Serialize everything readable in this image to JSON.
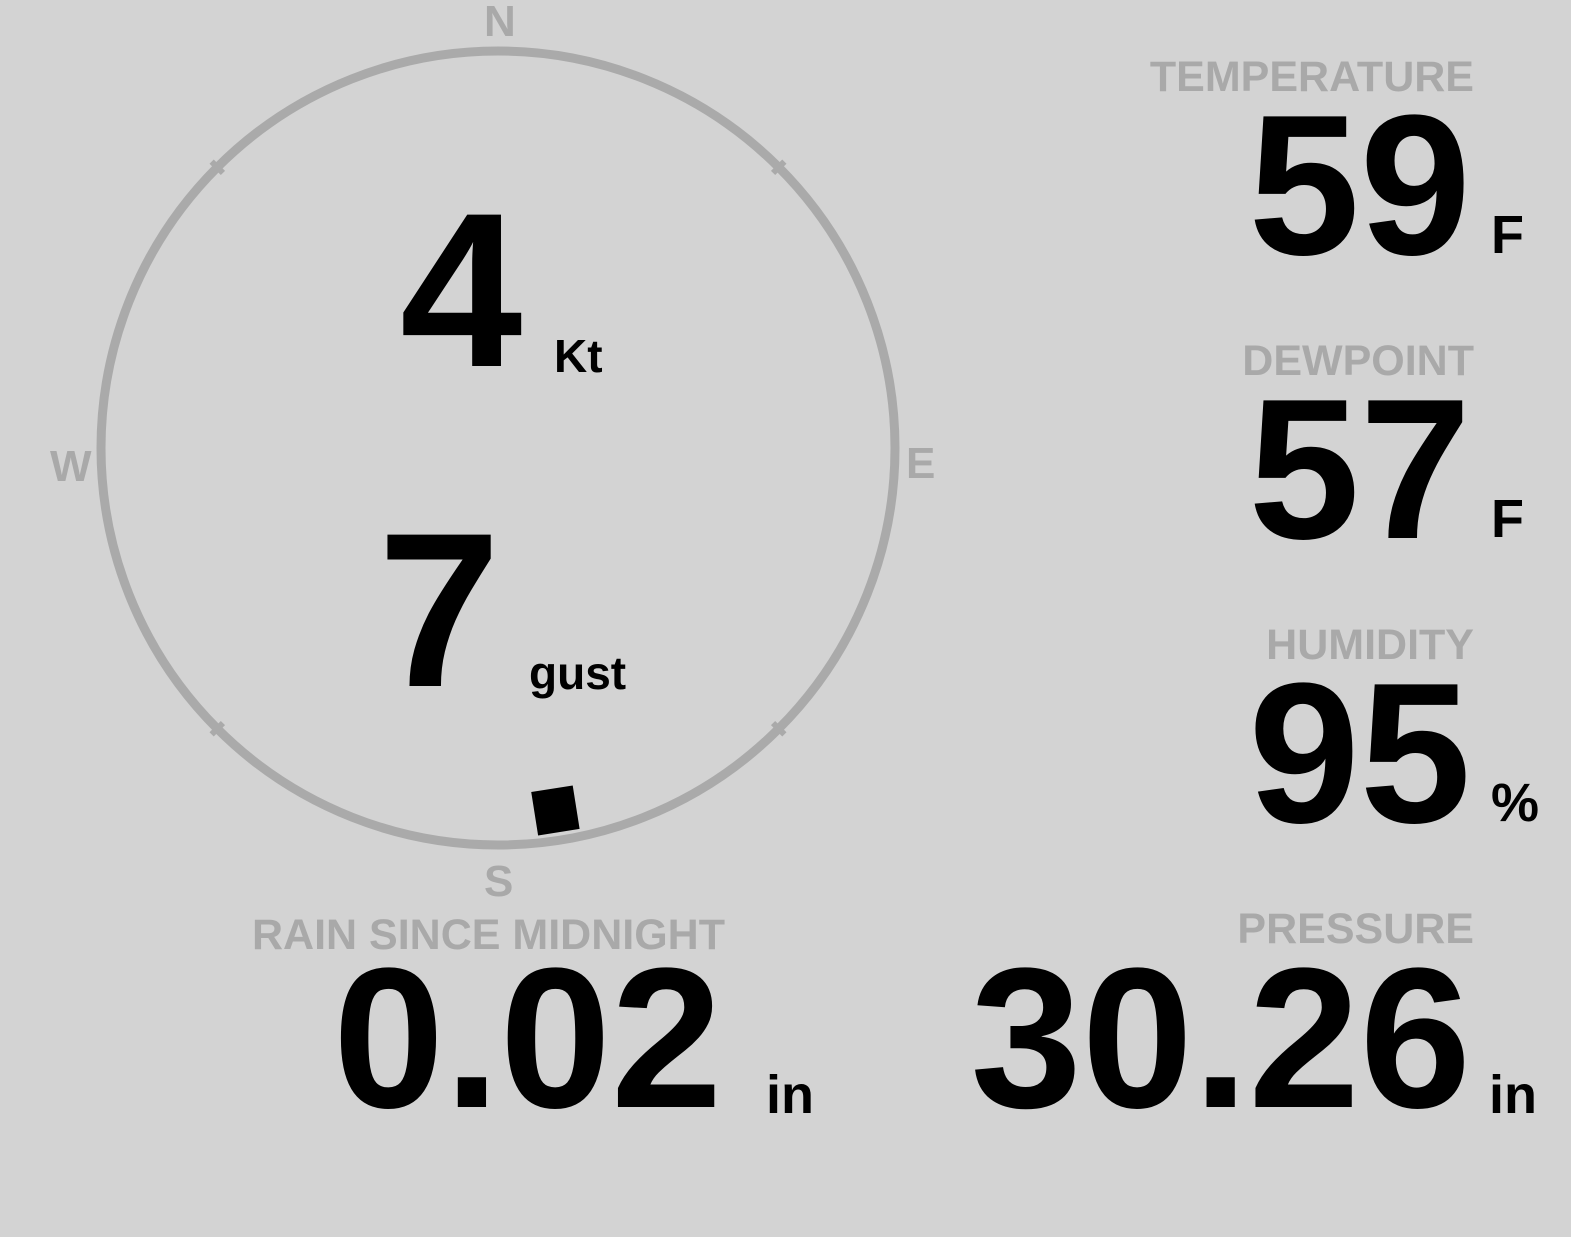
{
  "colors": {
    "background": "#d3d3d3",
    "label": "#a9a9a9",
    "value": "#000000",
    "compass_ring": "#aaaaaa"
  },
  "wind": {
    "speed": "4",
    "speed_unit": "Kt",
    "gust": "7",
    "gust_label": "gust",
    "direction_degrees": 171,
    "compass": {
      "n": "N",
      "s": "S",
      "e": "E",
      "w": "W"
    }
  },
  "temperature": {
    "label": "TEMPERATURE",
    "value": "59",
    "unit": "F"
  },
  "dewpoint": {
    "label": "DEWPOINT",
    "value": "57",
    "unit": "F"
  },
  "humidity": {
    "label": "HUMIDITY",
    "value": "95",
    "unit": "%"
  },
  "rain": {
    "label": "RAIN SINCE MIDNIGHT",
    "value": "0.02",
    "unit": "in"
  },
  "pressure": {
    "label": "PRESSURE",
    "value": "30.26",
    "unit": "in"
  }
}
